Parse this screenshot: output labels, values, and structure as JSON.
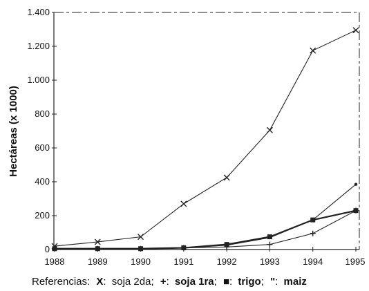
{
  "chart_data": {
    "type": "line",
    "title": "",
    "xlabel": "",
    "ylabel": "Hectáreas (x 1000)",
    "x": [
      "1988",
      "1989",
      "1990",
      "1991",
      "1992",
      "1993",
      "1994",
      "1995"
    ],
    "ylim": [
      0,
      1400
    ],
    "yticks": [
      0,
      200,
      400,
      600,
      800,
      1000,
      1200,
      1400
    ],
    "ytick_labels": [
      "0",
      "200",
      "400",
      "600",
      "800",
      "1.000",
      "1.200",
      "1.400"
    ],
    "grid": false,
    "series": [
      {
        "name": "soja 2da",
        "marker": "x",
        "values": [
          20,
          45,
          75,
          270,
          425,
          705,
          1175,
          1295
        ]
      },
      {
        "name": "soja 1ra",
        "marker": "+",
        "values": [
          5,
          5,
          5,
          10,
          15,
          30,
          95,
          230
        ]
      },
      {
        "name": "trigo",
        "marker": "square",
        "values": [
          5,
          5,
          5,
          10,
          30,
          75,
          175,
          230
        ]
      },
      {
        "name": "maiz",
        "marker": "dot",
        "values": [
          5,
          5,
          5,
          10,
          25,
          70,
          175,
          385
        ]
      }
    ],
    "legend": {
      "position": "bottom",
      "prefix": "Referencias:",
      "entries": [
        {
          "symbol": "X",
          "sep": ":",
          "label": "soja 2da",
          "end": ";"
        },
        {
          "symbol": "+",
          "sep": ":",
          "label": "soja 1ra",
          "end": ";"
        },
        {
          "symbol": "■",
          "sep": ":",
          "label": "trigo",
          "end": ";"
        },
        {
          "symbol": "\"",
          "sep": ":",
          "label": "maiz",
          "end": ""
        }
      ]
    },
    "colors": {
      "line": "#222222",
      "axis": "#222222"
    }
  }
}
